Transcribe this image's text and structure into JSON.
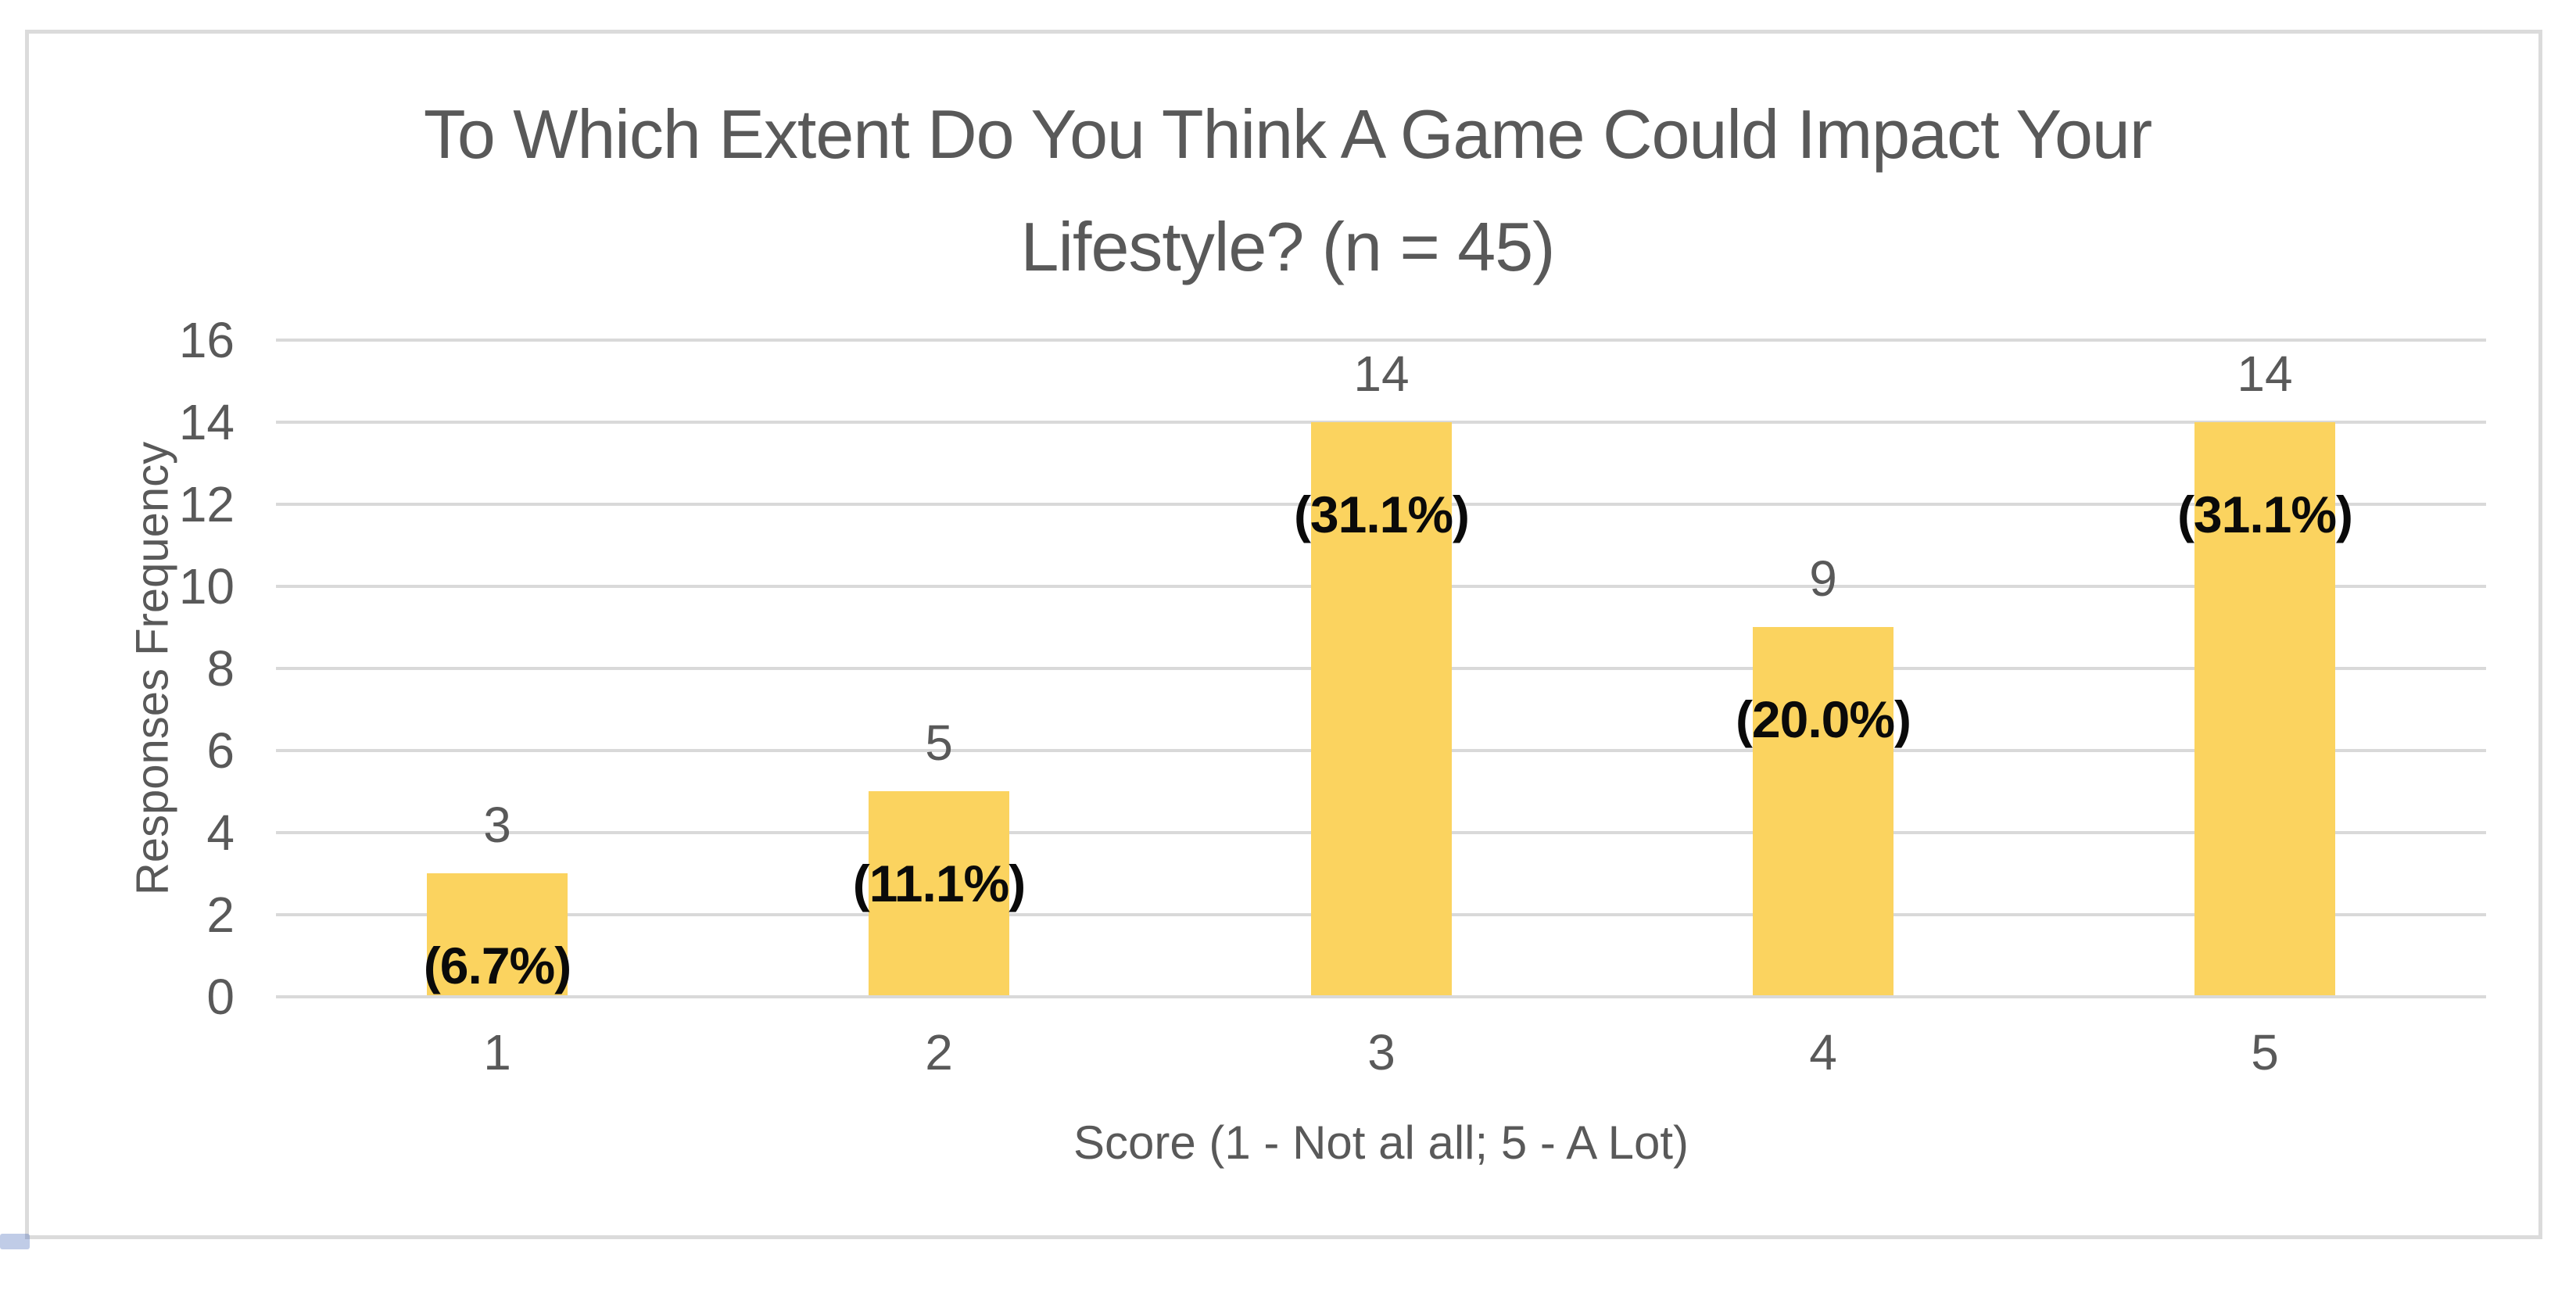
{
  "chart_data": {
    "type": "bar",
    "title": "To Which Extent Do You Think A Game Could Impact Your Lifestyle? (n = 45)",
    "title_lines": [
      "To Which Extent Do You Think A Game Could Impact Your",
      "Lifestyle? (n = 45)"
    ],
    "xlabel": "Score (1 - Not al all; 5 - A Lot)",
    "ylabel": "Responses Frequency",
    "categories": [
      "1",
      "2",
      "3",
      "4",
      "5"
    ],
    "values": [
      3,
      5,
      14,
      9,
      14
    ],
    "bar_value_labels": [
      "3",
      "5",
      "14",
      "9",
      "14"
    ],
    "bar_percent_labels": [
      "(6.7%)",
      "(11.1%)",
      "(31.1%)",
      "(20.0%)",
      "(31.1%)"
    ],
    "ylim": [
      0,
      16
    ],
    "ytick_step": 2,
    "ytick_labels": [
      "0",
      "2",
      "4",
      "6",
      "8",
      "10",
      "12",
      "14",
      "16"
    ],
    "grid": "horizontal",
    "legend": "none",
    "colors": {
      "bar": "#FBD35F",
      "gridline": "#D9D9D9",
      "axis_text": "#595959",
      "title_text": "#595959",
      "percent_text": "#0A0A0A",
      "frame_border": "#DBDBDB",
      "background": "#FFFFFF",
      "page_artifact_blue": "#4A6EB9"
    }
  }
}
